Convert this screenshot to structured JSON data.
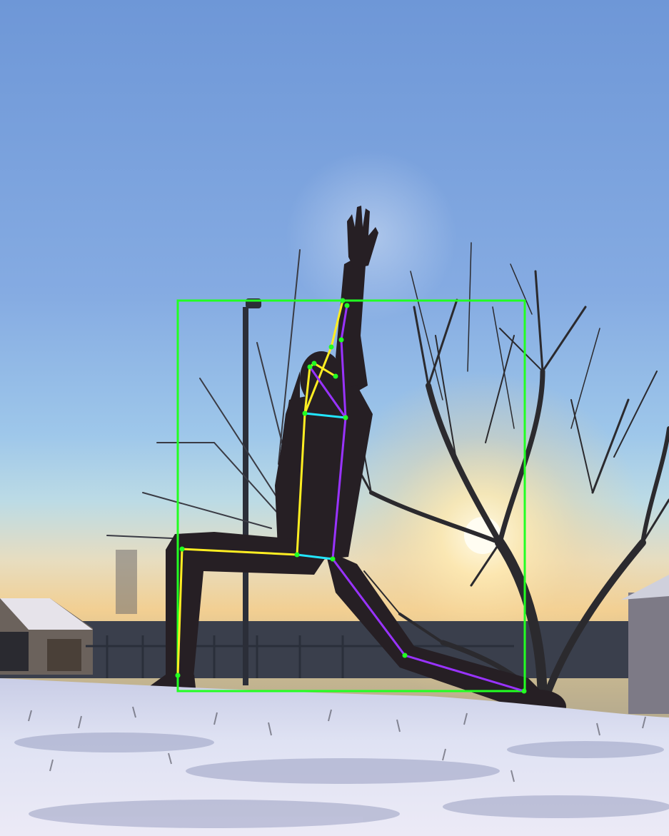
{
  "image": {
    "kind": "photograph",
    "overlay": "pose-estimation",
    "colors": {
      "bbox": "#22ff22",
      "left_side": "#ffee22",
      "right_side": "#9933ff",
      "cross_links": "#22e6ff",
      "keypoint": "#22ff22"
    }
  }
}
